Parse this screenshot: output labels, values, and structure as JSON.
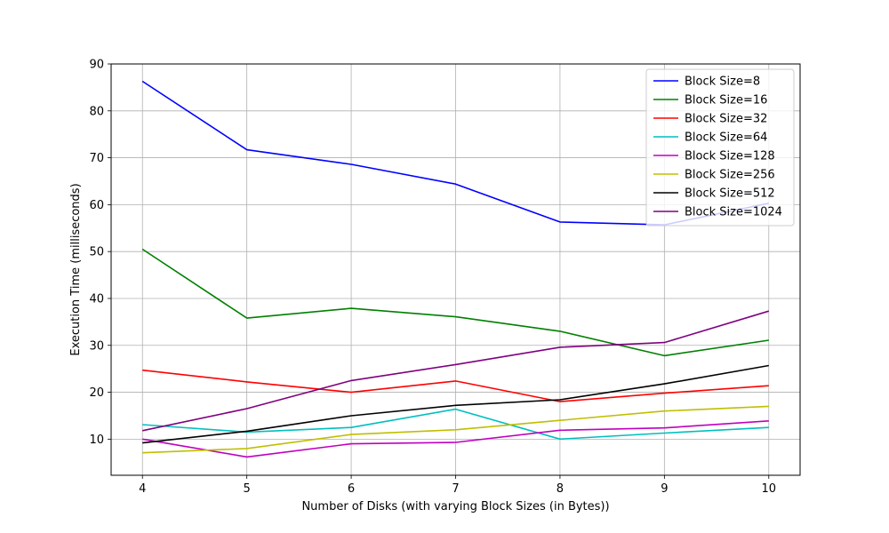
{
  "chart_data": {
    "type": "line",
    "xlabel": "Number of Disks (with varying Block Sizes (in Bytes))",
    "ylabel": "Execution Time (milliseconds)",
    "x": [
      4,
      5,
      6,
      7,
      8,
      9,
      10
    ],
    "xlim": [
      3.7,
      10.3
    ],
    "ylim": [
      2.3,
      90
    ],
    "xticks": [
      4,
      5,
      6,
      7,
      8,
      9,
      10
    ],
    "yticks": [
      10,
      20,
      30,
      40,
      50,
      60,
      70,
      80,
      90
    ],
    "grid": true,
    "legend_position": "top-right",
    "series": [
      {
        "name": "Block Size=8",
        "color": "#0000ff",
        "values": [
          86.3,
          71.7,
          68.6,
          64.4,
          56.3,
          55.7,
          60.3
        ]
      },
      {
        "name": "Block Size=16",
        "color": "#008000",
        "values": [
          50.5,
          35.8,
          37.9,
          36.1,
          33.0,
          27.8,
          31.1
        ]
      },
      {
        "name": "Block Size=32",
        "color": "#ff0000",
        "values": [
          24.7,
          22.2,
          20.0,
          22.4,
          18.0,
          19.8,
          21.4
        ]
      },
      {
        "name": "Block Size=64",
        "color": "#00bfbf",
        "values": [
          13.1,
          11.5,
          12.5,
          16.4,
          10.0,
          11.3,
          12.5
        ]
      },
      {
        "name": "Block Size=128",
        "color": "#bf00bf",
        "values": [
          10.0,
          6.2,
          9.0,
          9.3,
          11.9,
          12.4,
          13.9
        ]
      },
      {
        "name": "Block Size=256",
        "color": "#bfbf00",
        "values": [
          7.1,
          8.0,
          11.0,
          12.0,
          14.0,
          16.0,
          17.0
        ]
      },
      {
        "name": "Block Size=512",
        "color": "#000000",
        "values": [
          9.2,
          11.7,
          15.0,
          17.2,
          18.4,
          21.8,
          25.7
        ]
      },
      {
        "name": "Block Size=1024",
        "color": "#800080",
        "values": [
          11.8,
          16.5,
          22.5,
          25.9,
          29.6,
          30.6,
          37.3
        ]
      }
    ]
  }
}
